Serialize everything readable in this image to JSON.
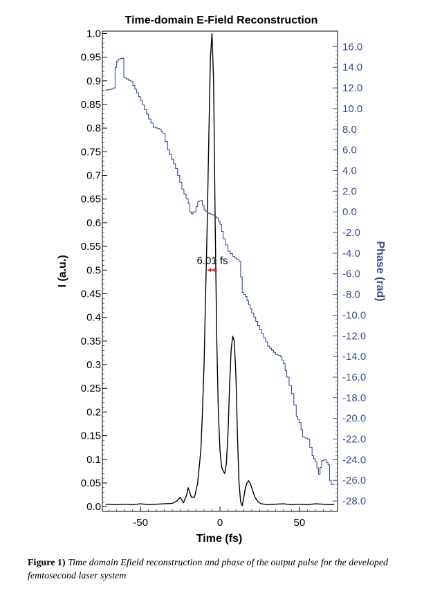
{
  "chart_data": {
    "type": "line",
    "title": "Time-domain E-Field Reconstruction",
    "xlabel": "Time (fs)",
    "ylabel": "I (a.u.)",
    "y2label": "Phase (rad)",
    "xlim": [
      -74,
      74
    ],
    "ylim": [
      -0.01,
      1.005
    ],
    "y2lim": [
      -29.0,
      17.5
    ],
    "x_ticks": [
      -50,
      0,
      50
    ],
    "x_tick_labels": [
      "-50",
      "0",
      "50"
    ],
    "y_ticks": [
      0.0,
      0.05,
      0.1,
      0.15,
      0.2,
      0.25,
      0.3,
      0.35,
      0.4,
      0.45,
      0.5,
      0.55,
      0.6,
      0.65,
      0.7,
      0.75,
      0.8,
      0.85,
      0.9,
      0.95,
      1.0
    ],
    "y_tick_labels": [
      "0.0",
      "0.05",
      "0.1",
      "0.15",
      "0.2",
      "0.25",
      "0.3",
      "0.35",
      "0.4",
      "0.45",
      "0.5",
      "0.55",
      "0.6",
      "0.65",
      "0.7",
      "0.75",
      "0.8",
      "0.85",
      "0.9",
      "0.95",
      "1.0"
    ],
    "y2_ticks": [
      16,
      14,
      12,
      10,
      8,
      6,
      4,
      2,
      0,
      -2,
      -4,
      -6,
      -8,
      -10,
      -12,
      -14,
      -16,
      -18,
      -20,
      -22,
      -24,
      -26,
      -28
    ],
    "y2_tick_labels": [
      "16.0",
      "14.0",
      "12.0",
      "10.0",
      "8.0",
      "6.0",
      "4.0",
      "2.0",
      "0.0",
      "-2.0",
      "-4.0",
      "-6.0",
      "-8.0",
      "-10.0",
      "-12.0",
      "-14.0",
      "-16.0",
      "-18.0",
      "-20.0",
      "-22.0",
      "-24.0",
      "-26.0",
      "-28.0"
    ],
    "grid": false,
    "annotation": {
      "text": "6.01 fs",
      "fwhm_x": [
        -7.8,
        -1.8
      ],
      "y": 0.5
    },
    "series": [
      {
        "axis": "left",
        "color": "#000000",
        "x": [
          -72,
          -65,
          -60,
          -55,
          -50,
          -45,
          -40,
          -35,
          -30,
          -27,
          -25,
          -23,
          -21,
          -20,
          -18,
          -16,
          -14,
          -12,
          -11,
          -10,
          -9,
          -8,
          -7,
          -6,
          -5,
          -4,
          -3,
          -2,
          -1,
          0,
          1,
          2,
          3,
          4,
          5,
          6,
          7,
          8,
          9,
          10,
          11,
          12,
          13,
          14,
          15,
          16,
          17,
          18,
          19,
          20,
          22,
          24,
          26,
          30,
          35,
          40,
          45,
          50,
          55,
          60,
          65,
          70,
          72
        ],
        "y": [
          0.005,
          0.004,
          0.005,
          0.004,
          0.006,
          0.004,
          0.005,
          0.006,
          0.007,
          0.012,
          0.02,
          0.008,
          0.025,
          0.04,
          0.02,
          0.02,
          0.05,
          0.12,
          0.2,
          0.3,
          0.45,
          0.6,
          0.78,
          0.95,
          1.0,
          0.9,
          0.6,
          0.35,
          0.2,
          0.12,
          0.085,
          0.075,
          0.07,
          0.09,
          0.15,
          0.25,
          0.33,
          0.36,
          0.35,
          0.28,
          0.15,
          0.05,
          0.01,
          0.002,
          0.02,
          0.04,
          0.05,
          0.055,
          0.05,
          0.04,
          0.02,
          0.01,
          0.006,
          0.004,
          0.005,
          0.006,
          0.004,
          0.005,
          0.004,
          0.006,
          0.005,
          0.004,
          0.005
        ]
      },
      {
        "axis": "right",
        "color": "#3a4f8c",
        "x": [
          -72,
          -68,
          -67,
          -66,
          -65,
          -64,
          -61,
          -60.5,
          -56,
          -50,
          -45,
          -42,
          -38,
          -36,
          -33,
          -28,
          -24,
          -20,
          -19,
          -18,
          -17,
          -16,
          -14,
          -12,
          -10,
          -8,
          -6,
          -5,
          -2,
          0,
          2,
          5,
          8,
          12,
          14,
          16,
          18,
          20,
          25,
          30,
          35,
          38,
          40,
          42,
          45,
          48,
          50,
          52,
          55,
          58,
          60,
          62,
          64,
          66,
          68,
          69,
          70,
          72
        ],
        "y": [
          11.8,
          11.9,
          12.0,
          14.0,
          14.6,
          14.8,
          14.9,
          13.0,
          12.6,
          10.8,
          9.0,
          8.2,
          8.0,
          7.6,
          6.0,
          4.2,
          2.2,
          0.8,
          0.0,
          -0.2,
          0.0,
          0.0,
          1.0,
          1.1,
          0.2,
          -0.1,
          -0.2,
          -0.3,
          -0.6,
          -1.2,
          -2.6,
          -3.8,
          -4.3,
          -4.8,
          -7.8,
          -8.2,
          -9.0,
          -9.8,
          -11.4,
          -13.0,
          -13.8,
          -14.0,
          -14.7,
          -16.0,
          -17.6,
          -19.8,
          -20.4,
          -21.8,
          -22.0,
          -23.6,
          -24.2,
          -25.4,
          -24.1,
          -24.0,
          -24.5,
          -26.0,
          -26.4,
          -26.4
        ]
      }
    ]
  },
  "caption": {
    "label": "Figure 1)",
    "text": "Time domain Efield reconstruction and phase of the output pulse for the developed femtosecond laser system"
  }
}
